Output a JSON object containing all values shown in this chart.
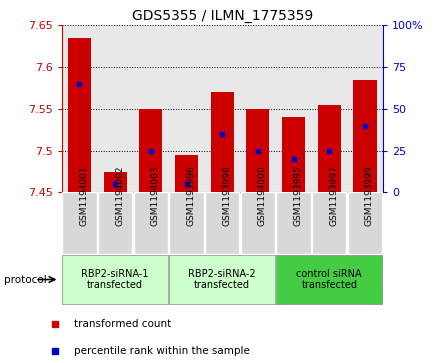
{
  "title": "GDS5355 / ILMN_1775359",
  "samples": [
    "GSM1194001",
    "GSM1194002",
    "GSM1194003",
    "GSM1193996",
    "GSM1193998",
    "GSM1194000",
    "GSM1193995",
    "GSM1193997",
    "GSM1193999"
  ],
  "transformed_counts": [
    7.635,
    7.475,
    7.55,
    7.495,
    7.57,
    7.55,
    7.54,
    7.555,
    7.585
  ],
  "percentile_ranks": [
    65,
    5,
    25,
    5,
    35,
    25,
    20,
    25,
    40
  ],
  "ylim": [
    7.45,
    7.65
  ],
  "yticks": [
    7.45,
    7.5,
    7.55,
    7.6,
    7.65
  ],
  "right_yticks": [
    0,
    25,
    50,
    75,
    100
  ],
  "protocols": [
    {
      "label": "RBP2-siRNA-1\ntransfected",
      "start": 0,
      "end": 3,
      "color": "#ccffcc"
    },
    {
      "label": "RBP2-siRNA-2\ntransfected",
      "start": 3,
      "end": 6,
      "color": "#ccffcc"
    },
    {
      "label": "control siRNA\ntransfected",
      "start": 6,
      "end": 9,
      "color": "#44cc44"
    }
  ],
  "bar_color": "#cc0000",
  "percentile_color": "#0000cc",
  "background_color": "#e8e8e8",
  "grid_color": "#000000",
  "left_axis_color": "#cc0000",
  "right_axis_color": "#0000cc",
  "protocol_label_color": "#000000",
  "sample_box_color": "#d8d8d8"
}
